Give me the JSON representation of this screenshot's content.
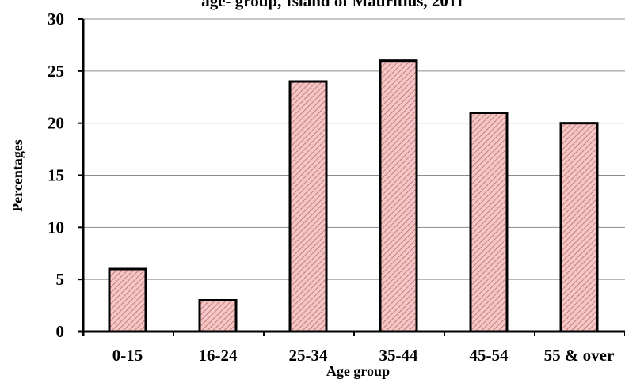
{
  "chart_data": {
    "type": "bar",
    "title": "age- group, Island of Mauritius, 2011",
    "xlabel": "Age group",
    "ylabel": "Percentages",
    "categories": [
      "0-15",
      "16-24",
      "25-34",
      "35-44",
      "45-54",
      "55 & over"
    ],
    "values": [
      6,
      3,
      24,
      26,
      21,
      20
    ],
    "ylim": [
      0,
      30
    ],
    "yticks": [
      0,
      5,
      10,
      15,
      20,
      25,
      30
    ],
    "grid": true,
    "legend": "none",
    "bar_fill": "#f4c6c6",
    "bar_hatch": "#c97b7b",
    "bar_edge": "#000000",
    "gridline_color": "#8c8c8c"
  }
}
